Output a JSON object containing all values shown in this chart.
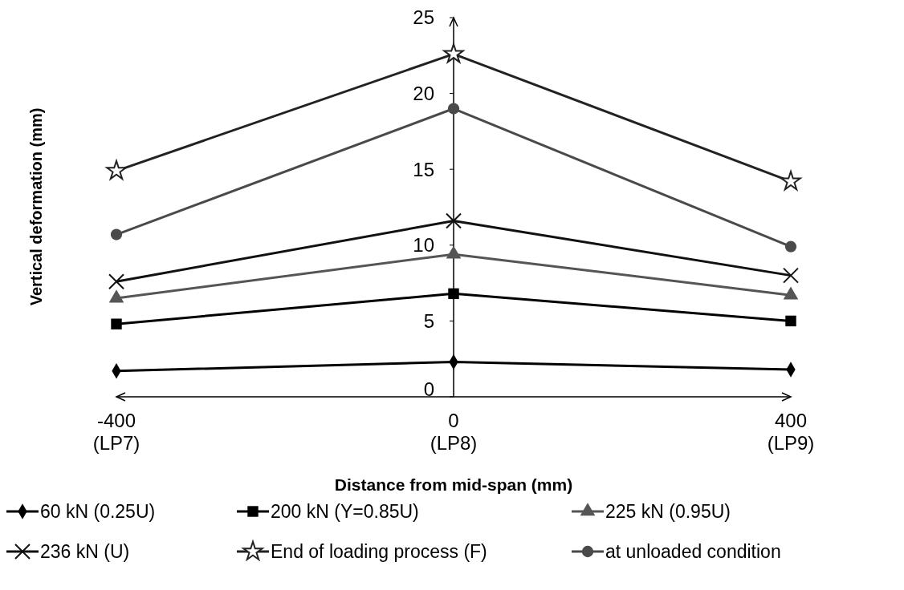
{
  "chart_data": {
    "type": "line",
    "xlabel": "Distance from mid-span (mm)",
    "ylabel": "Vertical deformation (mm)",
    "categories": [
      "-400\n(LP7)",
      "0\n(LP8)",
      "400\n(LP9)"
    ],
    "ylim": [
      0,
      25
    ],
    "yticks": [
      0,
      5,
      10,
      15,
      20,
      25
    ],
    "grid": false,
    "legend": "bottom",
    "line_style": "solid",
    "series": [
      {
        "name": "60 kN (0.25U)",
        "color": "#000000",
        "marker": "diamond",
        "values": [
          1.7,
          2.3,
          1.8
        ]
      },
      {
        "name": "200 kN (Y=0.85U)",
        "color": "#000000",
        "marker": "square",
        "values": [
          4.8,
          6.8,
          5.0
        ]
      },
      {
        "name": "225 kN (0.95U)",
        "color": "#555555",
        "marker": "triangle",
        "values": [
          6.5,
          9.4,
          6.7
        ]
      },
      {
        "name": "236 kN (U)",
        "color": "#111111",
        "marker": "cross",
        "values": [
          7.6,
          11.6,
          8.0
        ]
      },
      {
        "name": "End of loading process (F)",
        "color": "#222222",
        "marker": "star",
        "values": [
          14.9,
          22.6,
          14.2
        ]
      },
      {
        "name": "at unloaded condition",
        "color": "#4a4a4a",
        "marker": "circle",
        "values": [
          10.7,
          19.0,
          9.9
        ]
      }
    ]
  }
}
